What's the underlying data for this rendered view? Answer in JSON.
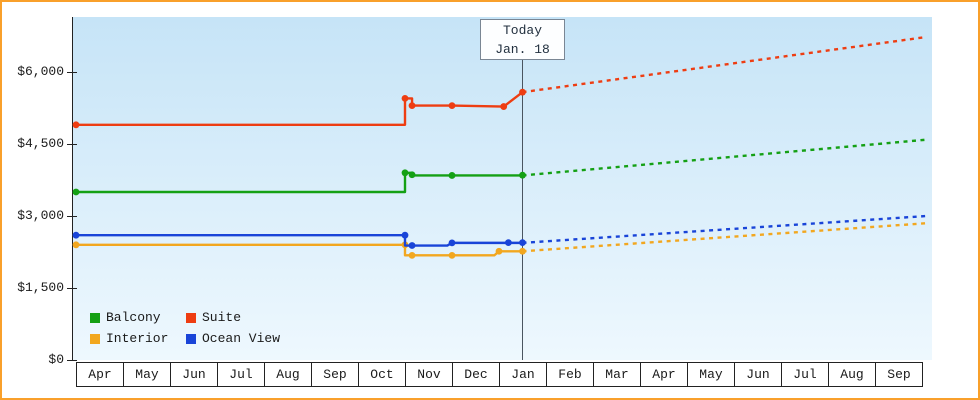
{
  "frame": {
    "border_color": "#f9a02b"
  },
  "today_annotation": {
    "label": "Today",
    "date": "Jan. 18"
  },
  "legend": [
    {
      "label": "Balcony",
      "color": "#14a014"
    },
    {
      "label": "Suite",
      "color": "#ee3d12"
    },
    {
      "label": "Interior",
      "color": "#f2a71f"
    },
    {
      "label": "Ocean View",
      "color": "#1944d8"
    }
  ],
  "chart_data": {
    "type": "line",
    "x_tick_labels": [
      "Apr",
      "May",
      "Jun",
      "Jul",
      "Aug",
      "Sep",
      "Oct",
      "Nov",
      "Dec",
      "Jan",
      "Feb",
      "Mar",
      "Apr",
      "May",
      "Jun",
      "Jul",
      "Aug",
      "Sep"
    ],
    "y_ticks": [
      0,
      1500,
      3000,
      4500,
      6000
    ],
    "y_tick_labels": [
      "$0",
      "$1,500",
      "$3,000",
      "$4,500",
      "$6,000"
    ],
    "ylim": [
      0,
      7150
    ],
    "xlim": [
      0,
      18.1
    ],
    "grid": false,
    "legend_position": "bottom-left-inside",
    "today": {
      "label": "Today",
      "date": "Jan. 18",
      "x": 9.5
    },
    "series": [
      {
        "name": "Interior",
        "color": "#f2a71f",
        "history": [
          [
            0,
            2400
          ],
          [
            7,
            2400
          ],
          [
            7,
            2180
          ],
          [
            8.9,
            2180
          ],
          [
            9,
            2265
          ],
          [
            9.5,
            2265
          ]
        ],
        "markers": [
          [
            0,
            2400
          ],
          [
            7,
            2400
          ],
          [
            7.15,
            2180
          ],
          [
            8,
            2180
          ],
          [
            9,
            2265
          ],
          [
            9.5,
            2265
          ]
        ],
        "forecast": [
          [
            9.5,
            2265
          ],
          [
            18.1,
            2850
          ]
        ]
      },
      {
        "name": "Ocean View",
        "color": "#1944d8",
        "history": [
          [
            0,
            2600
          ],
          [
            7,
            2600
          ],
          [
            7,
            2385
          ],
          [
            7.9,
            2385
          ],
          [
            8,
            2440
          ],
          [
            9.5,
            2440
          ]
        ],
        "markers": [
          [
            0,
            2600
          ],
          [
            7,
            2600
          ],
          [
            7.15,
            2385
          ],
          [
            8,
            2440
          ],
          [
            9.2,
            2445
          ],
          [
            9.5,
            2445
          ]
        ],
        "forecast": [
          [
            9.5,
            2440
          ],
          [
            18.1,
            3000
          ]
        ]
      },
      {
        "name": "Balcony",
        "color": "#14a014",
        "history": [
          [
            0,
            3500
          ],
          [
            7,
            3500
          ],
          [
            7,
            3900
          ],
          [
            7.15,
            3900
          ],
          [
            7.15,
            3845
          ],
          [
            9.5,
            3845
          ]
        ],
        "markers": [
          [
            0,
            3500
          ],
          [
            7,
            3900
          ],
          [
            7.15,
            3860
          ],
          [
            8,
            3845
          ],
          [
            9.5,
            3850
          ]
        ],
        "forecast": [
          [
            9.5,
            3845
          ],
          [
            18.1,
            4590
          ]
        ]
      },
      {
        "name": "Suite",
        "color": "#ee3d12",
        "history": [
          [
            0,
            4900
          ],
          [
            7,
            4900
          ],
          [
            7,
            5450
          ],
          [
            7.15,
            5450
          ],
          [
            7.15,
            5300
          ],
          [
            8,
            5300
          ],
          [
            9.1,
            5280
          ],
          [
            9.5,
            5580
          ]
        ],
        "markers": [
          [
            0,
            4900
          ],
          [
            7,
            5450
          ],
          [
            7.15,
            5300
          ],
          [
            8,
            5300
          ],
          [
            9.1,
            5280
          ],
          [
            9.5,
            5580
          ]
        ],
        "forecast": [
          [
            9.5,
            5580
          ],
          [
            18.1,
            6730
          ]
        ]
      }
    ]
  }
}
